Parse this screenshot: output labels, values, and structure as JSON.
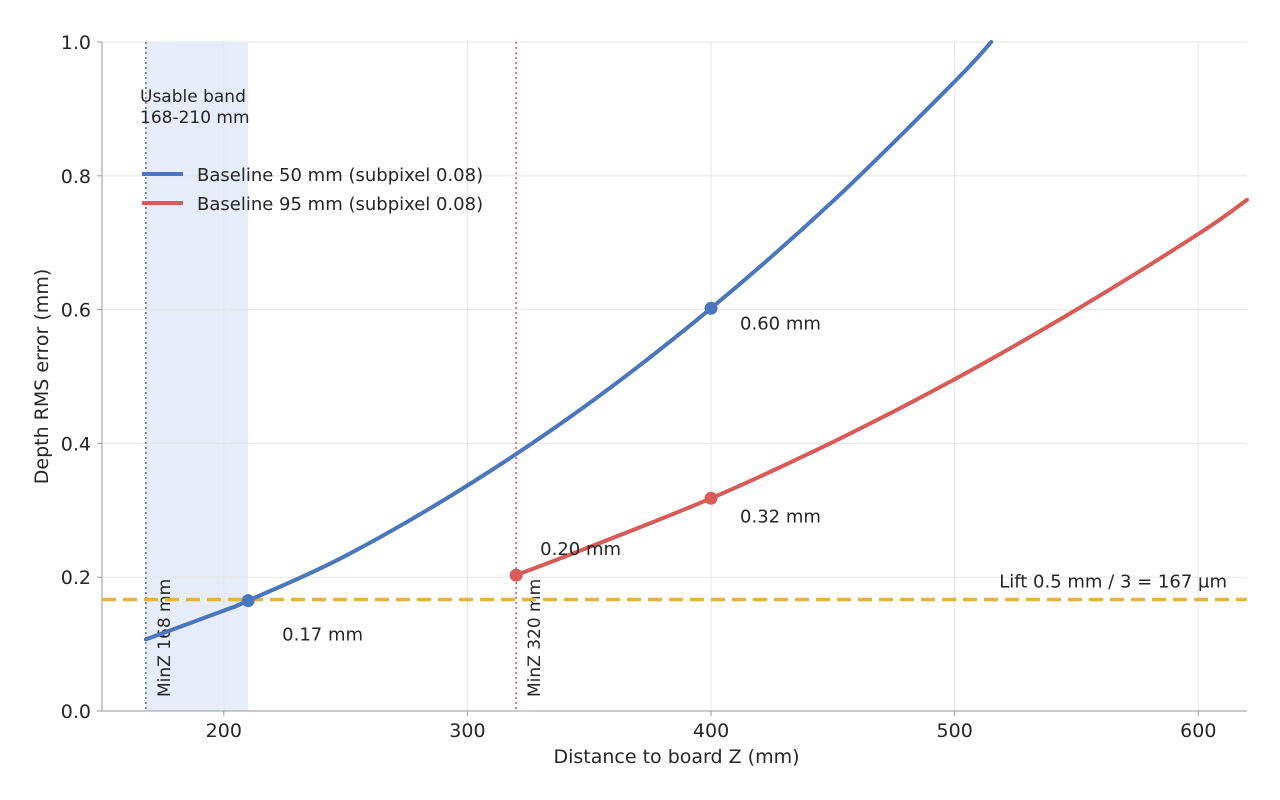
{
  "chart_data": {
    "type": "line",
    "title": "",
    "xlabel": "Distance to board Z (mm)",
    "ylabel": "Depth RMS error (mm)",
    "xlim": [
      150,
      620
    ],
    "ylim": [
      0.0,
      1.0
    ],
    "x_ticks": [
      200,
      300,
      400,
      500,
      600
    ],
    "x_tick_labels": [
      "200",
      "300",
      "400",
      "500",
      "600"
    ],
    "y_ticks": [
      0.0,
      0.2,
      0.4,
      0.6,
      0.8,
      1.0
    ],
    "y_tick_labels": [
      "0.0",
      "0.2",
      "0.4",
      "0.6",
      "0.8",
      "1.0"
    ],
    "grid": true,
    "legend_position": "upper-left",
    "series": [
      {
        "name": "Baseline 50 mm (subpixel 0.08)",
        "color": "#4a76bd",
        "start_x": 168,
        "end_x": 620,
        "x": [
          168,
          200,
          210,
          250,
          300,
          350,
          400,
          450,
          500,
          515
        ],
        "y": [
          0.107,
          0.15,
          0.165,
          0.232,
          0.337,
          0.46,
          0.602,
          0.762,
          0.941,
          1.0
        ]
      },
      {
        "name": "Baseline 95 mm (subpixel 0.08)",
        "color": "#d95a57",
        "start_x": 320,
        "end_x": 620,
        "x": [
          320,
          350,
          400,
          450,
          500,
          550,
          600,
          620
        ],
        "y": [
          0.203,
          0.245,
          0.318,
          0.402,
          0.496,
          0.6,
          0.713,
          0.764
        ]
      }
    ],
    "points": [
      {
        "series": 0,
        "x": 210,
        "y": 0.165,
        "label": "0.17 mm"
      },
      {
        "series": 0,
        "x": 400,
        "y": 0.602,
        "label": "0.60 mm"
      },
      {
        "series": 1,
        "x": 320,
        "y": 0.203,
        "label": "0.20 mm"
      },
      {
        "series": 1,
        "x": 400,
        "y": 0.318,
        "label": "0.32 mm"
      }
    ],
    "band": {
      "x_start": 168,
      "x_end": 210,
      "color": "#e6ecf8",
      "label_line1": "Usable band",
      "label_line2": "168-210 mm"
    },
    "vlines": [
      {
        "x": 168,
        "color": "#4a76bd",
        "label": "MinZ 168 mm"
      },
      {
        "x": 320,
        "color": "#d95a57",
        "label": "MinZ 320 mm"
      }
    ],
    "hline": {
      "y": 0.1667,
      "color": "#e8b33a",
      "label": "Lift 0.5 mm / 3 = 167 µm"
    }
  }
}
